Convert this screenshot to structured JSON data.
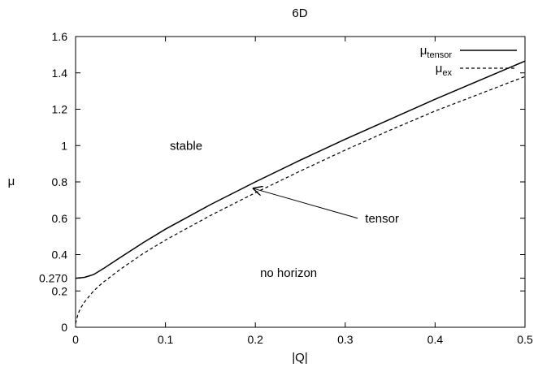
{
  "chart_data": {
    "type": "line",
    "title": "6D",
    "xlabel": "|Q|",
    "ylabel": "μ",
    "xlim": [
      0,
      0.5
    ],
    "ylim": [
      0,
      1.6
    ],
    "grid": false,
    "legend_position": "top-right",
    "x_ticks": [
      {
        "value": 0,
        "label": "0"
      },
      {
        "value": 0.1,
        "label": "0.1"
      },
      {
        "value": 0.2,
        "label": "0.2"
      },
      {
        "value": 0.3,
        "label": "0.3"
      },
      {
        "value": 0.4,
        "label": "0.4"
      },
      {
        "value": 0.5,
        "label": "0.5"
      }
    ],
    "y_ticks": [
      {
        "value": 0,
        "label": "0"
      },
      {
        "value": 0.2,
        "label": "0.2"
      },
      {
        "value": 0.27,
        "label": "0.270"
      },
      {
        "value": 0.4,
        "label": "0.4"
      },
      {
        "value": 0.6,
        "label": "0.6"
      },
      {
        "value": 0.8,
        "label": "0.8"
      },
      {
        "value": 1.0,
        "label": "1"
      },
      {
        "value": 1.2,
        "label": "1.2"
      },
      {
        "value": 1.4,
        "label": "1.4"
      },
      {
        "value": 1.6,
        "label": "1.6"
      }
    ],
    "series": [
      {
        "legend_main": "μ",
        "legend_sub": "tensor",
        "style": "solid",
        "color": "#000000",
        "x": [
          0,
          0.01,
          0.02,
          0.03,
          0.05,
          0.075,
          0.1,
          0.15,
          0.2,
          0.25,
          0.3,
          0.35,
          0.4,
          0.45,
          0.5
        ],
        "y": [
          0.27,
          0.275,
          0.29,
          0.32,
          0.385,
          0.465,
          0.54,
          0.675,
          0.8,
          0.92,
          1.035,
          1.145,
          1.255,
          1.36,
          1.465
        ]
      },
      {
        "legend_main": "μ",
        "legend_sub": "ex",
        "style": "dashed",
        "color": "#000000",
        "x": [
          0,
          0.0025,
          0.005,
          0.01,
          0.02,
          0.03,
          0.05,
          0.075,
          0.1,
          0.15,
          0.2,
          0.25,
          0.3,
          0.35,
          0.4,
          0.45,
          0.5
        ],
        "y": [
          0.02,
          0.07,
          0.1,
          0.14,
          0.2,
          0.245,
          0.32,
          0.405,
          0.48,
          0.615,
          0.74,
          0.86,
          0.975,
          1.085,
          1.19,
          1.285,
          1.38
        ]
      }
    ],
    "annotations": [
      {
        "text": "stable",
        "x": 0.123,
        "y": 1.0
      },
      {
        "text": "no horizon",
        "x": 0.237,
        "y": 0.3
      },
      {
        "text": "tensor",
        "x": 0.341,
        "y": 0.6,
        "arrow_to": {
          "x": 0.197,
          "y": 0.765
        }
      }
    ]
  }
}
